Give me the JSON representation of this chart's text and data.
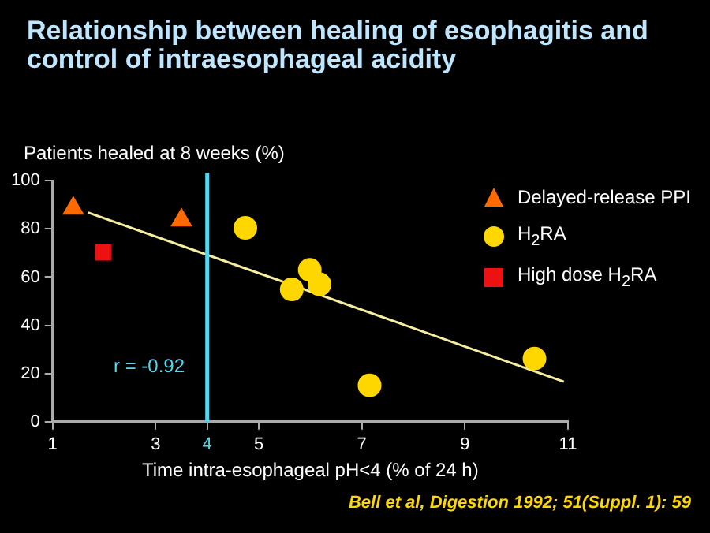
{
  "chart_data": {
    "type": "scatter",
    "title": "Relationship between healing of esophagitis and control of intraesophageal acidity",
    "ylabel": "Patients healed at 8 weeks (%)",
    "xlabel": "Time intra-esophageal pH<4 (% of 24 h)",
    "xlim": [
      1,
      11
    ],
    "xticks": [
      1,
      3,
      4,
      5,
      7,
      9,
      11
    ],
    "ylim": [
      0,
      100
    ],
    "yticks": [
      0,
      20,
      40,
      60,
      80,
      100
    ],
    "legend": "top right",
    "series": [
      {
        "name": "Delayed-release PPI",
        "color": "#ff6a00",
        "marker": "triangle",
        "x": [
          1.4,
          3.5
        ],
        "values": [
          88.5,
          83.6
        ]
      },
      {
        "name": "H$_{2}$RA",
        "color": "#ffd700",
        "marker": "circle",
        "x": [
          4.74,
          5.64,
          5.99,
          6.18,
          7.15,
          10.35
        ],
        "values": [
          80.4,
          54.9,
          63,
          57,
          15.1,
          26.2
        ]
      },
      {
        "name": "High dose H$_{2}$RA",
        "color": "#ee1111",
        "marker": "square",
        "x": [
          1.98
        ],
        "values": [
          70.2
        ]
      },
      {
        "type": "line",
        "color": "#f5eea0",
        "marker": "none",
        "x": [
          1.69,
          10.92
        ],
        "values": [
          86.8,
          16.6
        ]
      }
    ],
    "ref_lines": [
      {
        "axis": "x",
        "value": 4,
        "color": "#4fd8f0"
      }
    ],
    "annotations": [
      "r = -0.92",
      "Bell et al, Digestion 1992; 51(Suppl. 1): 59"
    ]
  }
}
